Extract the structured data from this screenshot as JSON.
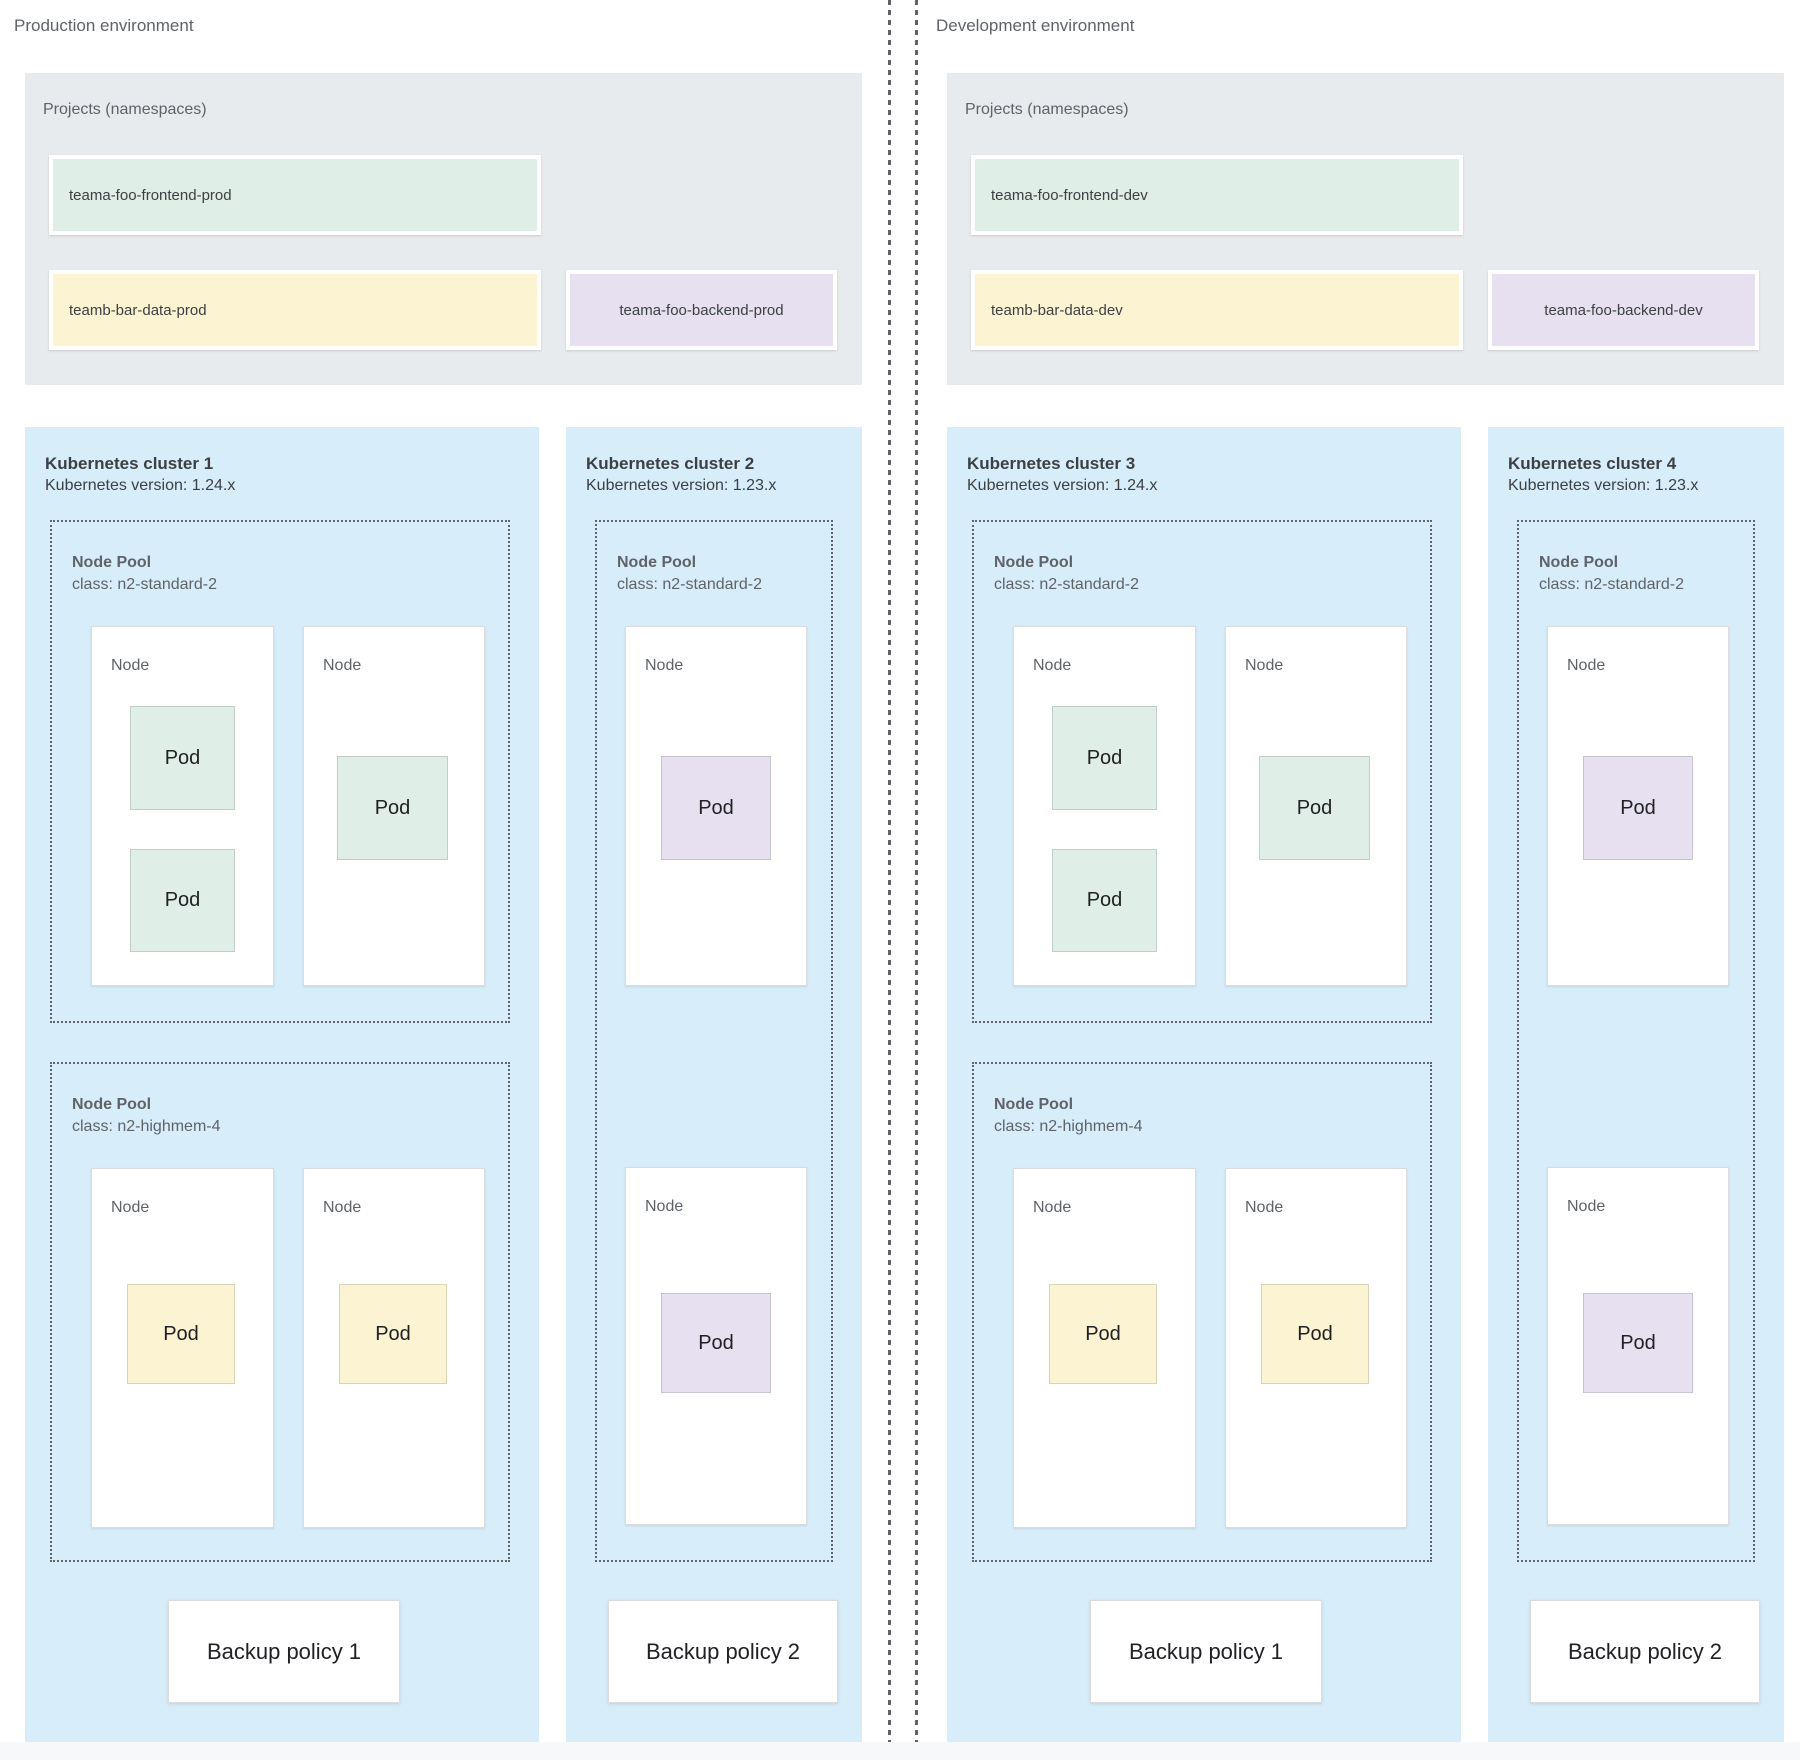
{
  "labels": {
    "node": "Node",
    "pod": "Pod"
  },
  "environments": [
    {
      "label": "Production environment",
      "projects": {
        "title": "Projects (namespaces)",
        "namespaces": [
          {
            "name": "teama-foo-frontend-prod",
            "color": "green"
          },
          {
            "name": "teamb-bar-data-prod",
            "color": "yellow"
          },
          {
            "name": "teama-foo-backend-prod",
            "color": "purple"
          }
        ]
      },
      "clusters": [
        {
          "name": "Kubernetes cluster 1",
          "version": "Kubernetes version: 1.24.x",
          "pools": [
            {
              "title": "Node Pool",
              "machine_class": "class: n2-standard-2",
              "nodes": [
                {
                  "pods": [
                    "green",
                    "green"
                  ]
                },
                {
                  "pods": [
                    "green"
                  ]
                }
              ]
            },
            {
              "title": "Node Pool",
              "machine_class": "class: n2-highmem-4",
              "nodes": [
                {
                  "pods": [
                    "yellow"
                  ]
                },
                {
                  "pods": [
                    "yellow"
                  ]
                }
              ]
            }
          ],
          "backup_policy": "Backup policy 1"
        },
        {
          "name": "Kubernetes cluster 2",
          "version": "Kubernetes version: 1.23.x",
          "pools": [
            {
              "title": "Node Pool",
              "machine_class": "class: n2-standard-2",
              "nodes": [
                {
                  "pods": [
                    "purple"
                  ]
                },
                {
                  "pods": [
                    "purple"
                  ]
                }
              ]
            }
          ],
          "backup_policy": "Backup policy 2"
        }
      ]
    },
    {
      "label": "Development environment",
      "projects": {
        "title": "Projects (namespaces)",
        "namespaces": [
          {
            "name": "teama-foo-frontend-dev",
            "color": "green"
          },
          {
            "name": "teamb-bar-data-dev",
            "color": "yellow"
          },
          {
            "name": "teama-foo-backend-dev",
            "color": "purple"
          }
        ]
      },
      "clusters": [
        {
          "name": "Kubernetes cluster 3",
          "version": "Kubernetes version: 1.24.x",
          "pools": [
            {
              "title": "Node Pool",
              "machine_class": "class: n2-standard-2",
              "nodes": [
                {
                  "pods": [
                    "green",
                    "green"
                  ]
                },
                {
                  "pods": [
                    "green"
                  ]
                }
              ]
            },
            {
              "title": "Node Pool",
              "machine_class": "class: n2-highmem-4",
              "nodes": [
                {
                  "pods": [
                    "yellow"
                  ]
                },
                {
                  "pods": [
                    "yellow"
                  ]
                }
              ]
            }
          ],
          "backup_policy": "Backup policy 1"
        },
        {
          "name": "Kubernetes cluster 4",
          "version": "Kubernetes version: 1.23.x",
          "pools": [
            {
              "title": "Node Pool",
              "machine_class": "class: n2-standard-2",
              "nodes": [
                {
                  "pods": [
                    "purple"
                  ]
                },
                {
                  "pods": [
                    "purple"
                  ]
                }
              ]
            }
          ],
          "backup_policy": "Backup policy 2"
        }
      ]
    }
  ],
  "colors": {
    "cluster_bg": "#d7edfa",
    "projects_bg": "#e8ebee",
    "namespace_green": "#dfeee6",
    "namespace_yellow": "#fcf3d2",
    "namespace_purple": "#e7e0f1",
    "label_grey": "#5f6368",
    "text_dark": "#202124"
  }
}
